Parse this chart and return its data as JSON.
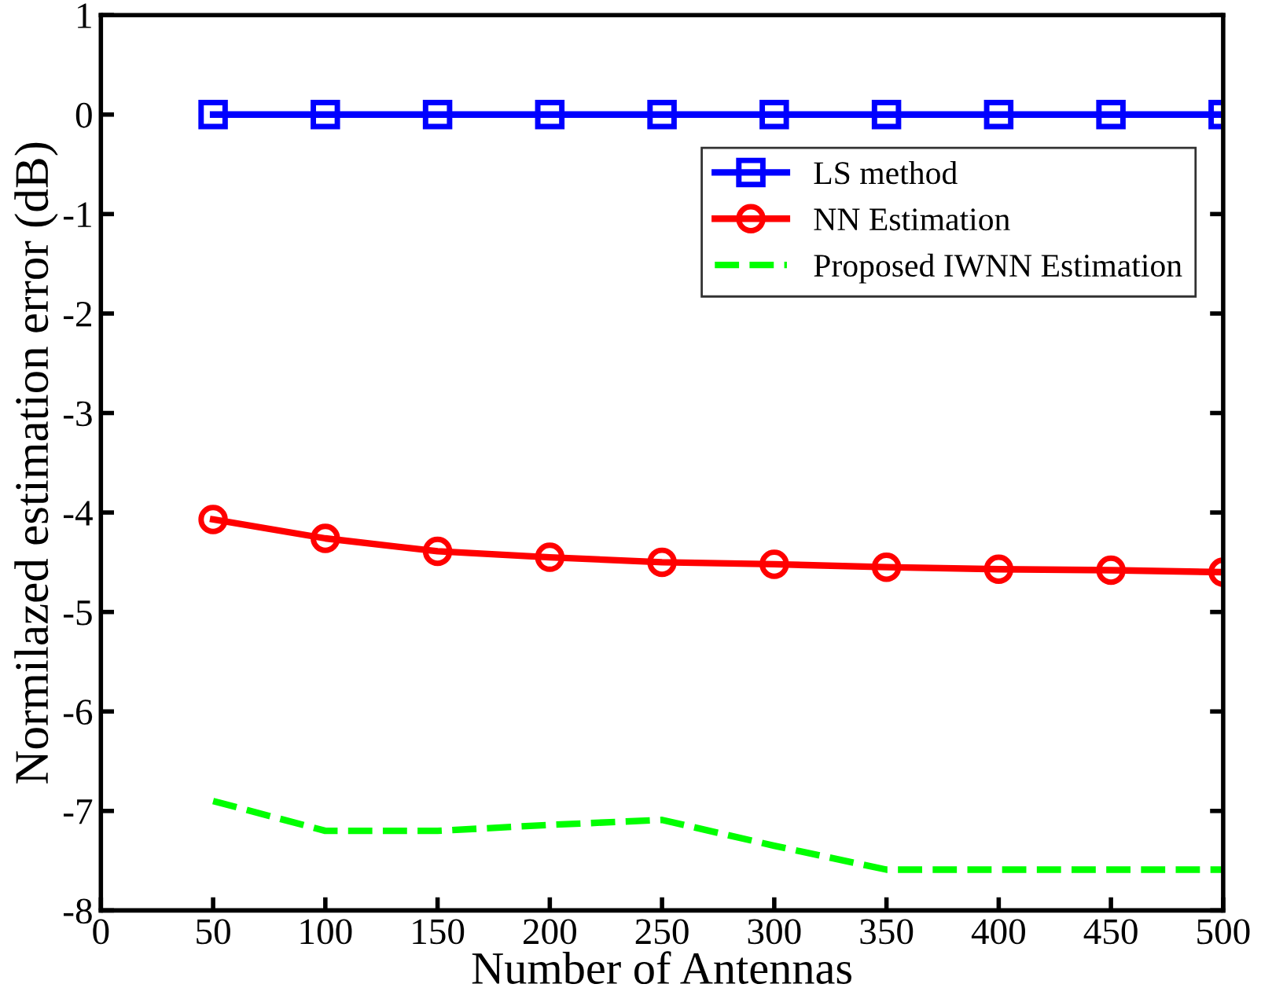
{
  "chart_data": {
    "type": "line",
    "xlabel": "Number of Antennas",
    "ylabel": "Normilazed estimation error (dB)",
    "x": [
      50,
      100,
      150,
      200,
      250,
      300,
      350,
      400,
      450,
      500
    ],
    "series": [
      {
        "name": "LS method",
        "color": "#0000ff",
        "marker": "square",
        "line_style": "solid",
        "values": [
          0,
          0,
          0,
          0,
          0,
          0,
          0,
          0,
          0,
          0
        ]
      },
      {
        "name": "NN Estimation",
        "color": "#ff0000",
        "marker": "circle",
        "line_style": "solid",
        "values": [
          -4.07,
          -4.26,
          -4.39,
          -4.45,
          -4.5,
          -4.52,
          -4.55,
          -4.57,
          -4.58,
          -4.6
        ]
      },
      {
        "name": "Proposed IWNN Estimation",
        "color": "#00ff00",
        "marker": "none",
        "line_style": "dashed",
        "values": [
          -6.9,
          -7.2,
          -7.2,
          -7.14,
          -7.09,
          -7.35,
          -7.59,
          -7.59,
          -7.59,
          -7.59
        ]
      }
    ],
    "xlim": [
      0,
      500
    ],
    "xticks": [
      0,
      50,
      100,
      150,
      200,
      250,
      300,
      350,
      400,
      450,
      500
    ],
    "ylim": [
      -8,
      1
    ],
    "yticks": [
      -8,
      -7,
      -6,
      -5,
      -4,
      -3,
      -2,
      -1,
      0,
      1
    ],
    "grid": false,
    "legend": "top right"
  }
}
